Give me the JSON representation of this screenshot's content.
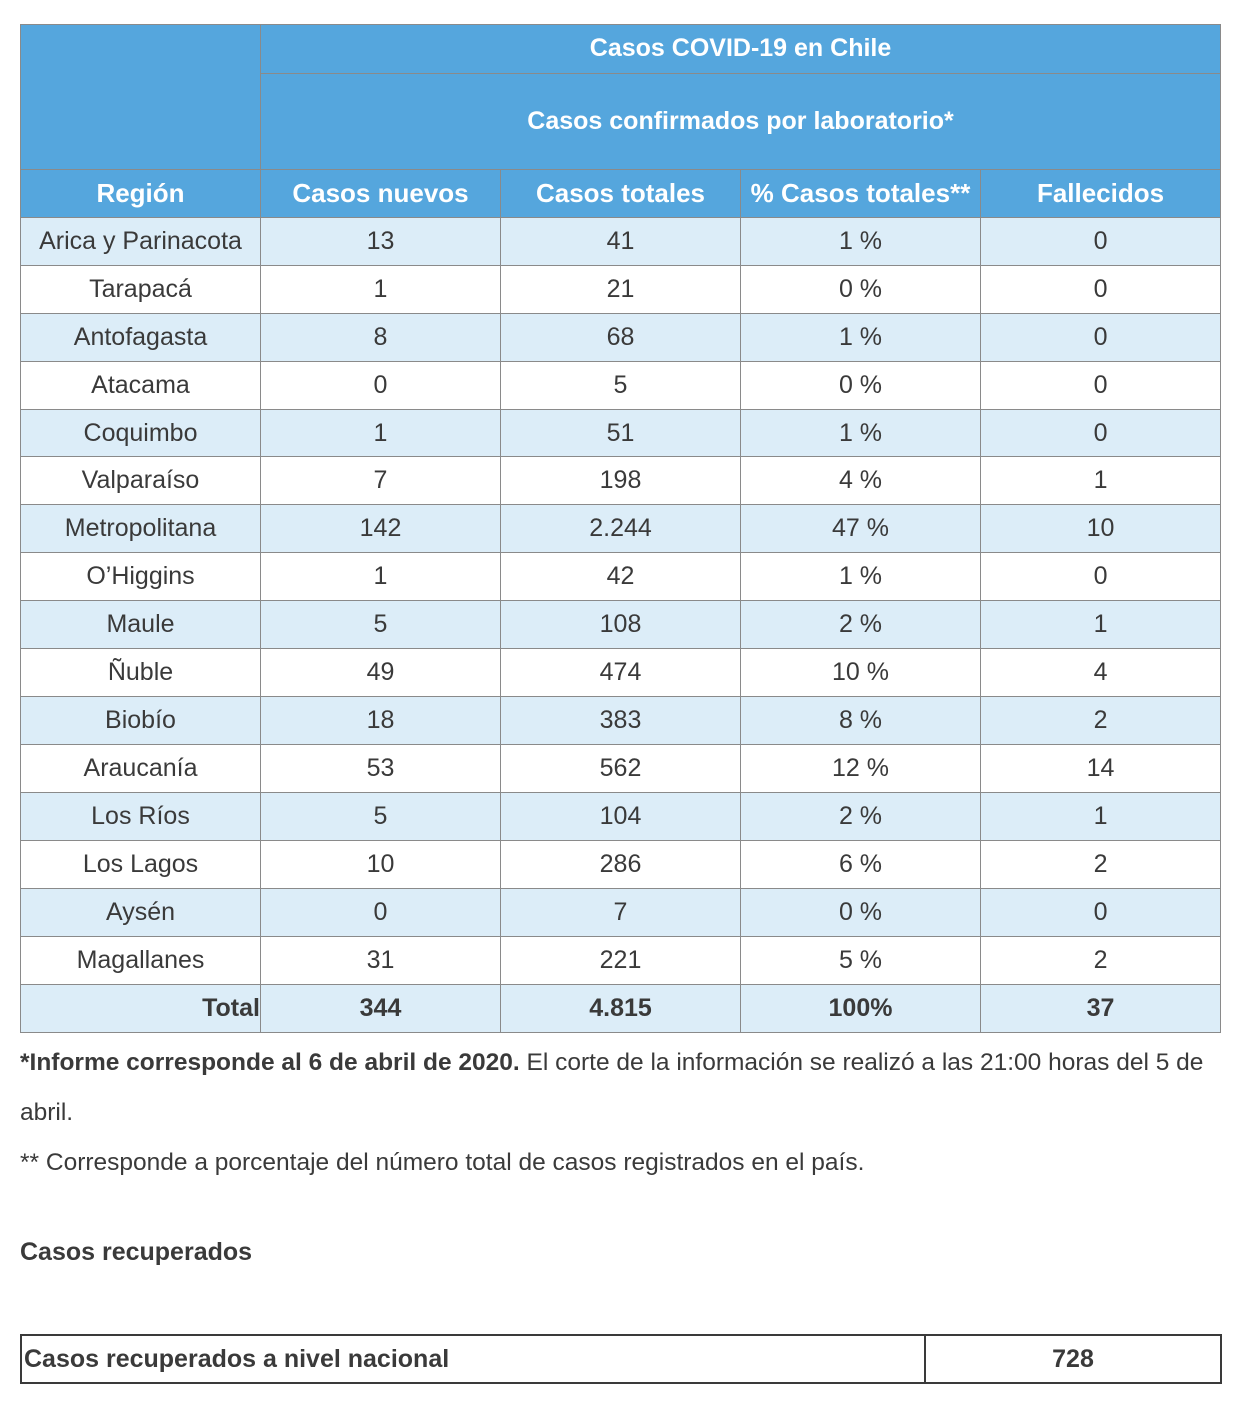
{
  "table": {
    "title": "Casos COVID-19 en Chile",
    "subtitle": "Casos confirmados por laboratorio*",
    "headers": [
      "Región",
      "Casos nuevos",
      "Casos totales",
      "% Casos totales**",
      "Fallecidos"
    ],
    "rows": [
      [
        "Arica y Parinacota",
        "13",
        "41",
        "1 %",
        "0"
      ],
      [
        "Tarapacá",
        "1",
        "21",
        "0 %",
        "0"
      ],
      [
        "Antofagasta",
        "8",
        "68",
        "1 %",
        "0"
      ],
      [
        "Atacama",
        "0",
        "5",
        "0 %",
        "0"
      ],
      [
        "Coquimbo",
        "1",
        "51",
        "1 %",
        "0"
      ],
      [
        "Valparaíso",
        "7",
        "198",
        "4 %",
        "1"
      ],
      [
        "Metropolitana",
        "142",
        "2.244",
        "47 %",
        "10"
      ],
      [
        "O’Higgins",
        "1",
        "42",
        "1 %",
        "0"
      ],
      [
        "Maule",
        "5",
        "108",
        "2 %",
        "1"
      ],
      [
        "Ñuble",
        "49",
        "474",
        "10 %",
        "4"
      ],
      [
        "Biobío",
        "18",
        "383",
        "8 %",
        "2"
      ],
      [
        "Araucanía",
        "53",
        "562",
        "12 %",
        "14"
      ],
      [
        "Los Ríos",
        "5",
        "104",
        "2 %",
        "1"
      ],
      [
        "Los Lagos",
        "10",
        "286",
        "6 %",
        "2"
      ],
      [
        "Aysén",
        "0",
        "7",
        "0 %",
        "0"
      ],
      [
        "Magallanes",
        "31",
        "221",
        "5 %",
        "2"
      ]
    ],
    "total": [
      "Total",
      "344",
      "4.815",
      "100%",
      "37"
    ]
  },
  "notes": {
    "note1_bold": "*Informe corresponde al 6 de abril de 2020.",
    "note1_rest": " El corte de la información se realizó a las 21:00 horas del 5 de abril.",
    "note2": "** Corresponde a porcentaje del número total de casos registrados en el país."
  },
  "recovered": {
    "heading": "Casos recuperados",
    "label": "Casos recuperados a nivel nacional",
    "value": "728"
  },
  "colors": {
    "header_blue": "#55a6dd",
    "row_light_blue": "#dcedf8"
  }
}
